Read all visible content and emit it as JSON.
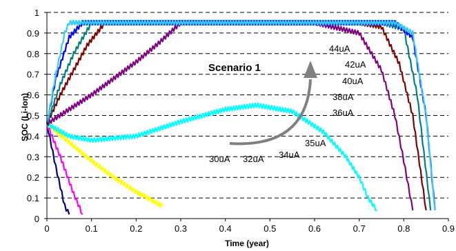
{
  "chart_data": {
    "type": "line",
    "title": "",
    "xlabel": "Time (year)",
    "ylabel": "SOC (Li-Ion)",
    "xlim": [
      0,
      0.9
    ],
    "ylim": [
      0,
      1
    ],
    "x_ticks": [
      "0",
      "0.1",
      "0.2",
      "0.3",
      "0.4",
      "0.5",
      "0.6",
      "0.7",
      "0.8",
      "0.9"
    ],
    "y_ticks": [
      "0",
      "0.1",
      "0.2",
      "0.3",
      "0.4",
      "0.5",
      "0.6",
      "0.7",
      "0.8",
      "0.9",
      "1"
    ],
    "grid": "horizontal dashed",
    "annotation_title": "Scenario 1",
    "series_labels": [
      "30uA",
      "32uA",
      "34uA",
      "35uA",
      "36uA",
      "38uA",
      "40uA",
      "42uA",
      "44uA"
    ],
    "series": [
      {
        "color": "#000080",
        "x": [
          0,
          0.02,
          0.04,
          0.05
        ],
        "y": [
          0.46,
          0.25,
          0.06,
          0.02
        ]
      },
      {
        "color": "#ff00ff",
        "x": [
          0,
          0.03,
          0.06,
          0.08
        ],
        "y": [
          0.46,
          0.3,
          0.12,
          0.02
        ]
      },
      {
        "color": "#ffff00",
        "x": [
          0,
          0.05,
          0.1,
          0.15,
          0.2,
          0.26
        ],
        "y": [
          0.46,
          0.37,
          0.28,
          0.2,
          0.13,
          0.06
        ]
      },
      {
        "color": "#00ffff",
        "x": [
          0,
          0.05,
          0.1,
          0.2,
          0.3,
          0.4,
          0.47,
          0.55,
          0.62,
          0.67,
          0.7,
          0.72,
          0.74
        ],
        "y": [
          0.46,
          0.4,
          0.38,
          0.4,
          0.47,
          0.53,
          0.55,
          0.52,
          0.42,
          0.3,
          0.2,
          0.1,
          0.04
        ]
      },
      {
        "color": "#800080",
        "x": [
          0,
          0.05,
          0.1,
          0.15,
          0.2,
          0.25,
          0.3,
          0.6,
          0.7,
          0.75,
          0.78,
          0.8,
          0.82
        ],
        "y": [
          0.46,
          0.53,
          0.6,
          0.68,
          0.76,
          0.85,
          0.95,
          0.95,
          0.9,
          0.72,
          0.5,
          0.28,
          0.04
        ]
      },
      {
        "color": "#800000",
        "x": [
          0,
          0.03,
          0.06,
          0.09,
          0.13,
          0.7,
          0.75,
          0.79,
          0.82,
          0.85
        ],
        "y": [
          0.46,
          0.6,
          0.72,
          0.84,
          0.95,
          0.95,
          0.93,
          0.75,
          0.5,
          0.04
        ]
      },
      {
        "color": "#008080",
        "x": [
          0,
          0.03,
          0.06,
          0.1,
          0.75,
          0.8,
          0.83,
          0.86
        ],
        "y": [
          0.46,
          0.65,
          0.8,
          0.95,
          0.95,
          0.92,
          0.6,
          0.04
        ]
      },
      {
        "color": "#0000ff",
        "x": [
          0,
          0.02,
          0.05,
          0.08,
          0.78,
          0.82,
          0.85,
          0.87
        ],
        "y": [
          0.46,
          0.68,
          0.88,
          0.95,
          0.95,
          0.88,
          0.5,
          0.04
        ]
      },
      {
        "color": "#33ccff",
        "x": [
          0,
          0.02,
          0.04,
          0.05,
          0.78,
          0.82,
          0.85,
          0.87
        ],
        "y": [
          0.46,
          0.7,
          0.9,
          0.95,
          0.95,
          0.9,
          0.5,
          0.04
        ]
      }
    ]
  }
}
